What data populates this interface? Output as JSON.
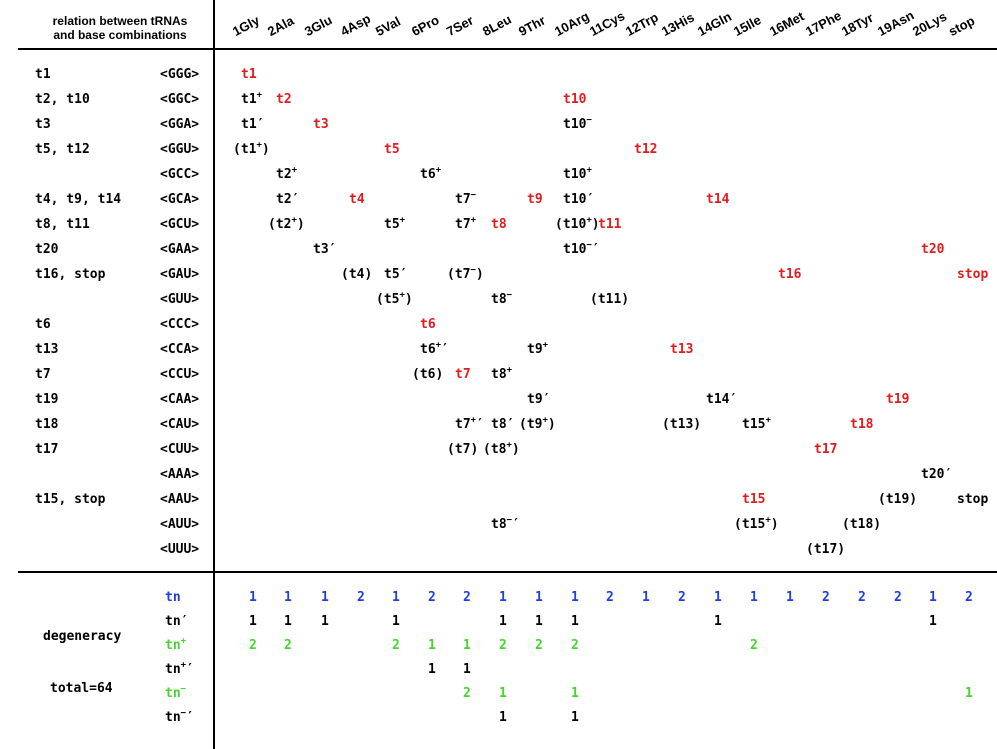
{
  "title": {
    "line1": "relation between tRNAs",
    "line2": "and base combinations"
  },
  "columns": [
    "1Gly",
    "2Ala",
    "3Glu",
    "4Asp",
    "5Val",
    "6Pro",
    "7Ser",
    "8Leu",
    "9Thr",
    "10Arg",
    "11Cys",
    "12Trp",
    "13His",
    "14Gln",
    "15Ile",
    "16Met",
    "17Phe",
    "18Tyr",
    "19Asn",
    "20Lys",
    "stop"
  ],
  "rows": [
    {
      "left": "t1",
      "codon": "<GGG>",
      "cells": [
        {
          "c": 0,
          "t": "t1",
          "color": "red"
        }
      ]
    },
    {
      "left": "t2, t10",
      "codon": "<GGC>",
      "cells": [
        {
          "c": 0,
          "t": "t1",
          "sup": "+",
          "color": "black"
        },
        {
          "c": 1,
          "t": "t2",
          "color": "red"
        },
        {
          "c": 9,
          "t": "t10",
          "color": "red"
        }
      ]
    },
    {
      "left": "t3",
      "codon": "<GGA>",
      "cells": [
        {
          "c": 0,
          "t": "t1′",
          "color": "black"
        },
        {
          "c": 2,
          "t": "t3",
          "color": "red"
        },
        {
          "c": 9,
          "t": "t10",
          "sup": "−",
          "color": "black"
        }
      ]
    },
    {
      "left": "t5, t12",
      "codon": "<GGU>",
      "cells": [
        {
          "c": 0,
          "t": "(t1",
          "sup": "+",
          "tail": ")",
          "color": "black"
        },
        {
          "c": 4,
          "t": "t5",
          "color": "red"
        },
        {
          "c": 11,
          "t": "t12",
          "color": "red"
        }
      ]
    },
    {
      "left": "",
      "codon": "<GCC>",
      "cells": [
        {
          "c": 1,
          "t": "t2",
          "sup": "+",
          "color": "black"
        },
        {
          "c": 5,
          "t": "t6",
          "sup": "+",
          "color": "black"
        },
        {
          "c": 9,
          "t": "t10",
          "sup": "+",
          "color": "black"
        }
      ]
    },
    {
      "left": "t4, t9, t14",
      "codon": "<GCA>",
      "cells": [
        {
          "c": 1,
          "t": "t2′",
          "color": "black"
        },
        {
          "c": 3,
          "t": "t4",
          "color": "red"
        },
        {
          "c": 6,
          "t": "t7",
          "sup": "−",
          "color": "black"
        },
        {
          "c": 8,
          "t": "t9",
          "color": "red"
        },
        {
          "c": 9,
          "t": "t10′",
          "color": "black"
        },
        {
          "c": 13,
          "t": "t14",
          "color": "red"
        }
      ]
    },
    {
      "left": "t8, t11",
      "codon": "<GCU>",
      "cells": [
        {
          "c": 1,
          "t": "(t2",
          "sup": "+",
          "tail": ")",
          "color": "black"
        },
        {
          "c": 4,
          "t": "t5",
          "sup": "+",
          "color": "black"
        },
        {
          "c": 6,
          "t": "t7",
          "sup": "+",
          "color": "black"
        },
        {
          "c": 7,
          "t": "t8",
          "color": "red"
        },
        {
          "c": 9,
          "t": "(t10",
          "sup": "+",
          "tail": ")",
          "color": "black"
        },
        {
          "c": 10,
          "t": "t11",
          "color": "red"
        }
      ]
    },
    {
      "left": "t20",
      "codon": "<GAA>",
      "cells": [
        {
          "c": 2,
          "t": "t3′",
          "color": "black"
        },
        {
          "c": 9,
          "t": "t10",
          "sup": "−",
          "tail": "′",
          "color": "black"
        },
        {
          "c": 19,
          "t": "t20",
          "color": "red"
        }
      ]
    },
    {
      "left": "t16, stop",
      "codon": "<GAU>",
      "cells": [
        {
          "c": 3,
          "t": "(t4)",
          "color": "black"
        },
        {
          "c": 4,
          "t": "t5′",
          "color": "black"
        },
        {
          "c": 6,
          "t": "(t7",
          "sup": "−",
          "tail": ")",
          "color": "black"
        },
        {
          "c": 15,
          "t": "t16",
          "color": "red"
        },
        {
          "c": 20,
          "t": "stop",
          "color": "red"
        }
      ]
    },
    {
      "left": "",
      "codon": "<GUU>",
      "cells": [
        {
          "c": 4,
          "t": "(t5",
          "sup": "+",
          "tail": ")",
          "color": "black"
        },
        {
          "c": 7,
          "t": "t8",
          "sup": "−",
          "color": "black"
        },
        {
          "c": 10,
          "t": "(t11)",
          "color": "black"
        }
      ]
    },
    {
      "left": "t6",
      "codon": "<CCC>",
      "cells": [
        {
          "c": 5,
          "t": "t6",
          "color": "red"
        }
      ]
    },
    {
      "left": "t13",
      "codon": "<CCA>",
      "cells": [
        {
          "c": 5,
          "t": "t6",
          "sup": "+",
          "tail": "′",
          "color": "black"
        },
        {
          "c": 8,
          "t": "t9",
          "sup": "+",
          "color": "black"
        },
        {
          "c": 12,
          "t": "t13",
          "color": "red"
        }
      ]
    },
    {
      "left": "t7",
      "codon": "<CCU>",
      "cells": [
        {
          "c": 5,
          "t": "(t6)",
          "color": "black"
        },
        {
          "c": 6,
          "t": "t7",
          "color": "red"
        },
        {
          "c": 7,
          "t": "t8",
          "sup": "+",
          "color": "black"
        }
      ]
    },
    {
      "left": "t19",
      "codon": "<CAA>",
      "cells": [
        {
          "c": 8,
          "t": "t9′",
          "color": "black"
        },
        {
          "c": 13,
          "t": "t14′",
          "color": "black"
        },
        {
          "c": 18,
          "t": "t19",
          "color": "red"
        }
      ]
    },
    {
      "left": "t18",
      "codon": "<CAU>",
      "cells": [
        {
          "c": 6,
          "t": "t7",
          "sup": "+",
          "tail": "′",
          "color": "black"
        },
        {
          "c": 7,
          "t": "t8′",
          "color": "black"
        },
        {
          "c": 8,
          "t": "(t9",
          "sup": "+",
          "tail": ")",
          "color": "black"
        },
        {
          "c": 12,
          "t": "(t13)",
          "color": "black"
        },
        {
          "c": 14,
          "t": "t15",
          "sup": "+",
          "color": "black"
        },
        {
          "c": 17,
          "t": "t18",
          "color": "red"
        }
      ]
    },
    {
      "left": "t17",
      "codon": "<CUU>",
      "cells": [
        {
          "c": 6,
          "t": "(t7)",
          "color": "black"
        },
        {
          "c": 7,
          "t": "(t8",
          "sup": "+",
          "tail": ")",
          "color": "black"
        },
        {
          "c": 16,
          "t": "t17",
          "color": "red"
        }
      ]
    },
    {
      "left": "",
      "codon": "<AAA>",
      "cells": [
        {
          "c": 19,
          "t": "t20′",
          "color": "black"
        }
      ]
    },
    {
      "left": "t15, stop",
      "codon": "<AAU>",
      "cells": [
        {
          "c": 14,
          "t": "t15",
          "color": "red"
        },
        {
          "c": 18,
          "t": "(t19)",
          "color": "black"
        },
        {
          "c": 20,
          "t": "stop",
          "color": "black"
        }
      ]
    },
    {
      "left": "",
      "codon": "<AUU>",
      "cells": [
        {
          "c": 7,
          "t": "t8",
          "sup": "−",
          "tail": "′",
          "color": "black"
        },
        {
          "c": 14,
          "t": "(t15",
          "sup": "+",
          "tail": ")",
          "color": "black"
        },
        {
          "c": 17,
          "t": "(t18)",
          "color": "black"
        }
      ]
    },
    {
      "left": "",
      "codon": "<UUU>",
      "cells": [
        {
          "c": 16,
          "t": "(t17)",
          "color": "black"
        }
      ]
    }
  ],
  "bottom": {
    "degeneracy_label": "degeneracy",
    "total_label": "total=64",
    "rows": [
      {
        "label": "tn",
        "sup": "",
        "tail": "",
        "color": "blue",
        "values": [
          "1",
          "1",
          "1",
          "2",
          "1",
          "2",
          "2",
          "1",
          "1",
          "1",
          "2",
          "1",
          "2",
          "1",
          "1",
          "1",
          "2",
          "2",
          "2",
          "1",
          "2"
        ]
      },
      {
        "label": "tn",
        "sup": "",
        "tail": "′",
        "color": "black",
        "values": [
          "1",
          "1",
          "1",
          "",
          "1",
          "",
          "",
          "1",
          "1",
          "1",
          "",
          "",
          "",
          "1",
          "",
          "",
          "",
          "",
          "",
          "1",
          ""
        ]
      },
      {
        "label": "tn",
        "sup": "+",
        "tail": "",
        "color": "green",
        "values": [
          "2",
          "2",
          "",
          "",
          "2",
          "1",
          "1",
          "2",
          "2",
          "2",
          "",
          "",
          "",
          "",
          "2",
          "",
          "",
          "",
          "",
          "",
          ""
        ]
      },
      {
        "label": "tn",
        "sup": "+",
        "tail": "′",
        "color": "black",
        "values": [
          "",
          "",
          "",
          "",
          "",
          "1",
          "1",
          "",
          "",
          "",
          "",
          "",
          "",
          "",
          "",
          "",
          "",
          "",
          "",
          "",
          ""
        ]
      },
      {
        "label": "tn",
        "sup": "−",
        "tail": "",
        "color": "green",
        "values": [
          "",
          "",
          "",
          "",
          "",
          "",
          "2",
          "1",
          "",
          "1",
          "",
          "",
          "",
          "",
          "",
          "",
          "",
          "",
          "",
          "",
          "1"
        ]
      },
      {
        "label": "tn",
        "sup": "−",
        "tail": "′",
        "color": "black",
        "values": [
          "",
          "",
          "",
          "",
          "",
          "",
          "",
          "1",
          "",
          "1",
          "",
          "",
          "",
          "",
          "",
          "",
          "",
          "",
          "",
          "",
          ""
        ]
      }
    ]
  },
  "colors": {
    "red": "#e41a1c",
    "blue": "#1f3fd8",
    "green": "#44d62c",
    "black": "#000000"
  }
}
